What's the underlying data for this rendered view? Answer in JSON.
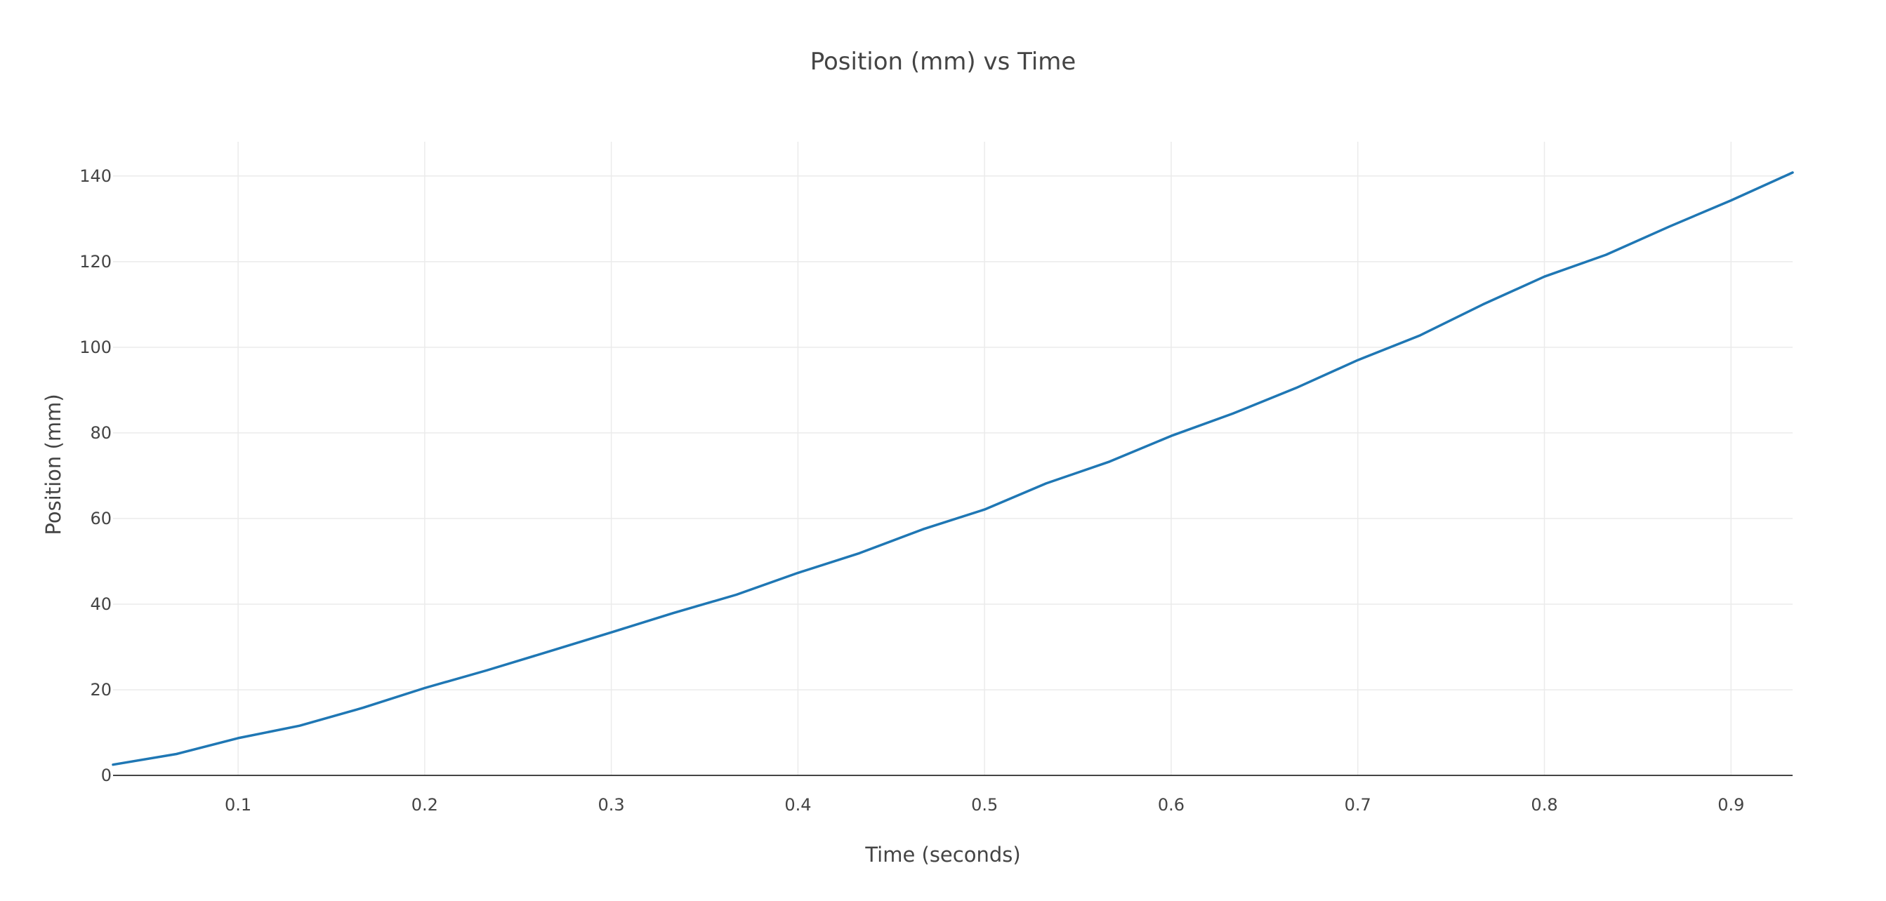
{
  "chart_data": {
    "type": "line",
    "title": "Position (mm) vs Time",
    "xlabel": "Time (seconds)",
    "ylabel": "Position (mm)",
    "xlim": [
      0.033,
      0.933
    ],
    "ylim": [
      0,
      148
    ],
    "x_ticks": [
      0.1,
      0.2,
      0.3,
      0.4,
      0.5,
      0.6,
      0.7,
      0.8,
      0.9
    ],
    "x_tick_labels": [
      "0.1",
      "0.2",
      "0.3",
      "0.4",
      "0.5",
      "0.6",
      "0.7",
      "0.8",
      "0.9"
    ],
    "y_ticks": [
      0,
      20,
      40,
      60,
      80,
      100,
      120,
      140
    ],
    "y_tick_labels": [
      "0",
      "20",
      "40",
      "60",
      "80",
      "100",
      "120",
      "140"
    ],
    "grid": true,
    "line_color": "#1f77b4",
    "x": [
      0.033,
      0.067,
      0.1,
      0.133,
      0.167,
      0.2,
      0.233,
      0.267,
      0.3,
      0.333,
      0.367,
      0.4,
      0.433,
      0.467,
      0.5,
      0.533,
      0.567,
      0.6,
      0.633,
      0.667,
      0.7,
      0.733,
      0.767,
      0.8,
      0.833,
      0.867,
      0.9,
      0.933
    ],
    "series": [
      {
        "values": [
          2.5,
          5.0,
          8.7,
          11.6,
          15.8,
          20.4,
          24.5,
          29.0,
          33.4,
          37.9,
          42.2,
          47.3,
          51.9,
          57.5,
          62.1,
          68.2,
          73.3,
          79.3,
          84.5,
          90.5,
          97.0,
          102.7,
          110.0,
          116.5,
          121.6,
          128.2,
          134.3,
          140.8
        ]
      }
    ]
  }
}
